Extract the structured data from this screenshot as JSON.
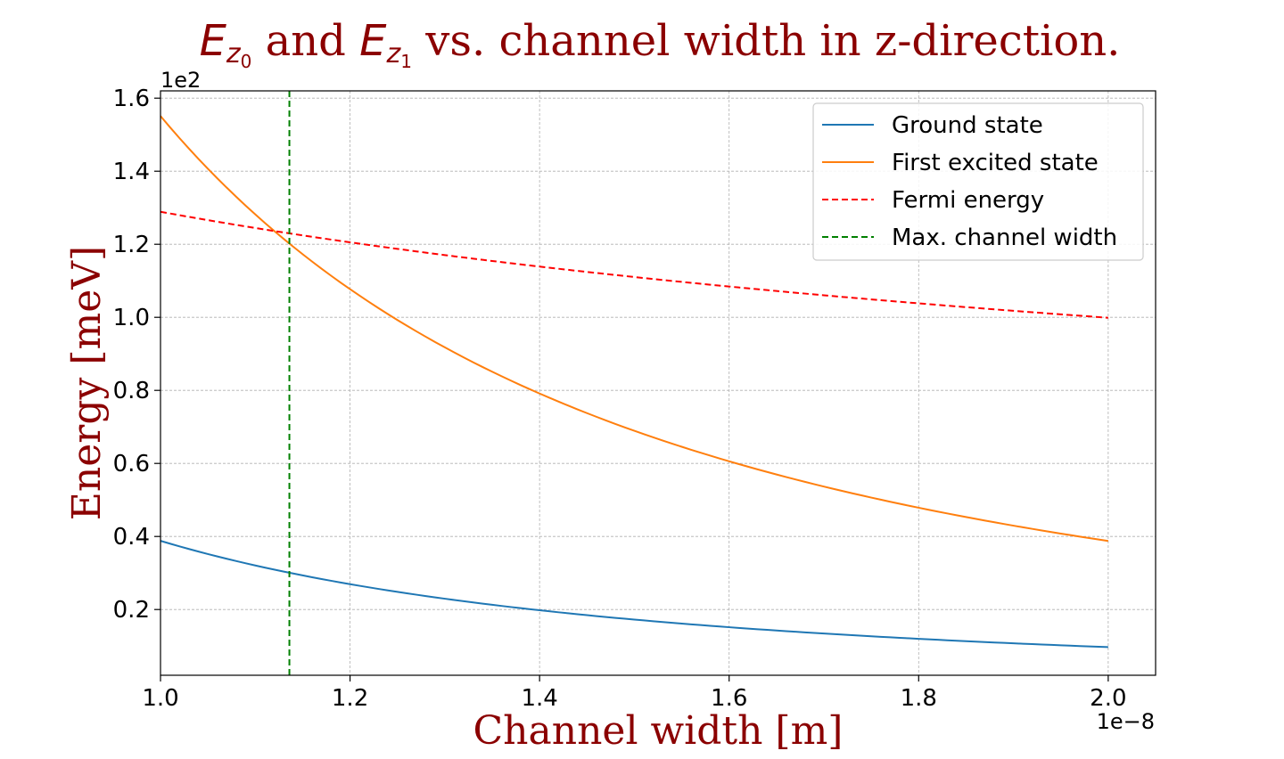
{
  "chart_data": {
    "type": "line",
    "title": {
      "part1_var": "E",
      "part1_sub": "z",
      "part1_subsub": "0",
      "mid": " and ",
      "part2_var": "E",
      "part2_sub": "z",
      "part2_subsub": "1",
      "tail": " vs. channel width in z-direction."
    },
    "xlabel": "Channel width [m]",
    "ylabel": "Energy [meV]",
    "x_offset_label": "1e−8",
    "y_offset_label": "1e2",
    "xlim": [
      1.0,
      2.05
    ],
    "ylim": [
      0.02,
      1.62
    ],
    "x_ticks": [
      1.0,
      1.2,
      1.4,
      1.6,
      1.8,
      2.0
    ],
    "x_tick_labels": [
      "1.0",
      "1.2",
      "1.4",
      "1.6",
      "1.8",
      "2.0"
    ],
    "y_ticks": [
      0.2,
      0.4,
      0.6,
      0.8,
      1.0,
      1.2,
      1.4,
      1.6
    ],
    "y_tick_labels": [
      "0.2",
      "0.4",
      "0.6",
      "0.8",
      "1.0",
      "1.2",
      "1.4",
      "1.6"
    ],
    "grid": true,
    "legend_position": "top-right",
    "x": [
      1.0,
      1.05,
      1.1,
      1.136,
      1.15,
      1.2,
      1.25,
      1.3,
      1.35,
      1.4,
      1.45,
      1.5,
      1.55,
      1.6,
      1.65,
      1.7,
      1.75,
      1.8,
      1.85,
      1.9,
      1.95,
      2.0
    ],
    "series": [
      {
        "name": "Ground state",
        "color": "#1f77b4",
        "dash": "solid",
        "values": [
          0.388,
          0.352,
          0.321,
          0.301,
          0.293,
          0.27,
          0.248,
          0.23,
          0.213,
          0.198,
          0.185,
          0.173,
          0.162,
          0.152,
          0.143,
          0.134,
          0.127,
          0.12,
          0.113,
          0.108,
          0.102,
          0.097
        ]
      },
      {
        "name": "First excited state",
        "color": "#ff7f0e",
        "dash": "solid",
        "values": [
          1.551,
          1.407,
          1.282,
          1.202,
          1.173,
          1.077,
          0.993,
          0.918,
          0.851,
          0.792,
          0.738,
          0.689,
          0.646,
          0.606,
          0.57,
          0.537,
          0.507,
          0.479,
          0.453,
          0.43,
          0.408,
          0.388
        ]
      },
      {
        "name": "Fermi energy",
        "color": "#ff0000",
        "dash": "dashed",
        "values": [
          1.289,
          1.258,
          1.229,
          1.209,
          1.202,
          1.177,
          1.153,
          1.131,
          1.11,
          1.09,
          1.071,
          1.053,
          1.035,
          1.019,
          1.004,
          0.989,
          0.974,
          0.961,
          0.948,
          0.935,
          0.923,
          0.997
        ]
      }
    ],
    "vline": {
      "name": "Max. channel width",
      "color": "#008000",
      "dash": "dashed",
      "x": 1.136
    }
  }
}
